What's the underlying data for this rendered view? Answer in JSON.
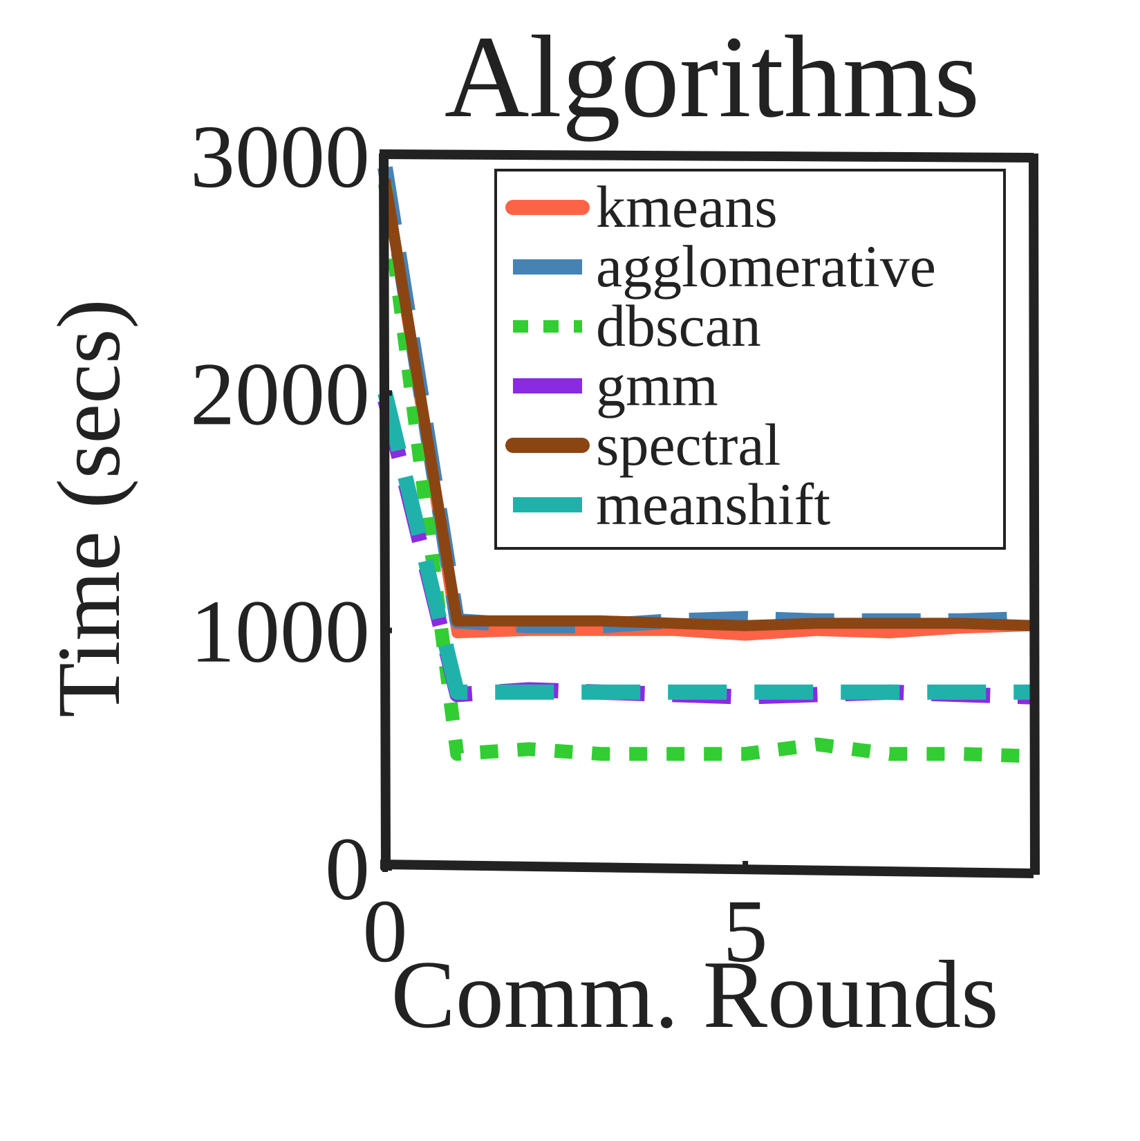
{
  "chart_data": {
    "type": "line",
    "title": "Algorithms",
    "xlabel": "Comm. Rounds",
    "ylabel": "Time (secs)",
    "xlim": [
      0,
      9
    ],
    "ylim": [
      0,
      3000
    ],
    "x_ticks": [
      "0",
      "5"
    ],
    "y_ticks": [
      "0",
      "1000",
      "2000",
      "3000"
    ],
    "grid": false,
    "legend_position": "top-right",
    "x": [
      0,
      1,
      2,
      3,
      4,
      5,
      6,
      7,
      8,
      9
    ],
    "series": [
      {
        "name": "kmeans",
        "color": "#FF6347",
        "style": "solid",
        "values": [
          2900,
          990,
          1000,
          1000,
          1000,
          980,
          1000,
          990,
          1010,
          1020
        ]
      },
      {
        "name": "agglomerative",
        "color": "#4682B4",
        "style": "dashed",
        "values": [
          2950,
          1040,
          1020,
          1020,
          1040,
          1050,
          1040,
          1040,
          1040,
          1050
        ]
      },
      {
        "name": "dbscan",
        "color": "#32CD32",
        "style": "dotted",
        "values": [
          2880,
          480,
          500,
          480,
          480,
          480,
          520,
          480,
          480,
          470
        ]
      },
      {
        "name": "gmm",
        "color": "#8A2BE2",
        "style": "dashed",
        "values": [
          1970,
          730,
          750,
          740,
          730,
          720,
          730,
          740,
          730,
          720
        ]
      },
      {
        "name": "spectral",
        "color": "#8B4513",
        "style": "solid",
        "values": [
          2900,
          1040,
          1040,
          1040,
          1030,
          1020,
          1030,
          1030,
          1030,
          1020
        ]
      },
      {
        "name": "meanshift",
        "color": "#20B2AA",
        "style": "dashed",
        "values": [
          2000,
          740,
          740,
          740,
          740,
          740,
          740,
          740,
          740,
          740
        ]
      }
    ]
  }
}
